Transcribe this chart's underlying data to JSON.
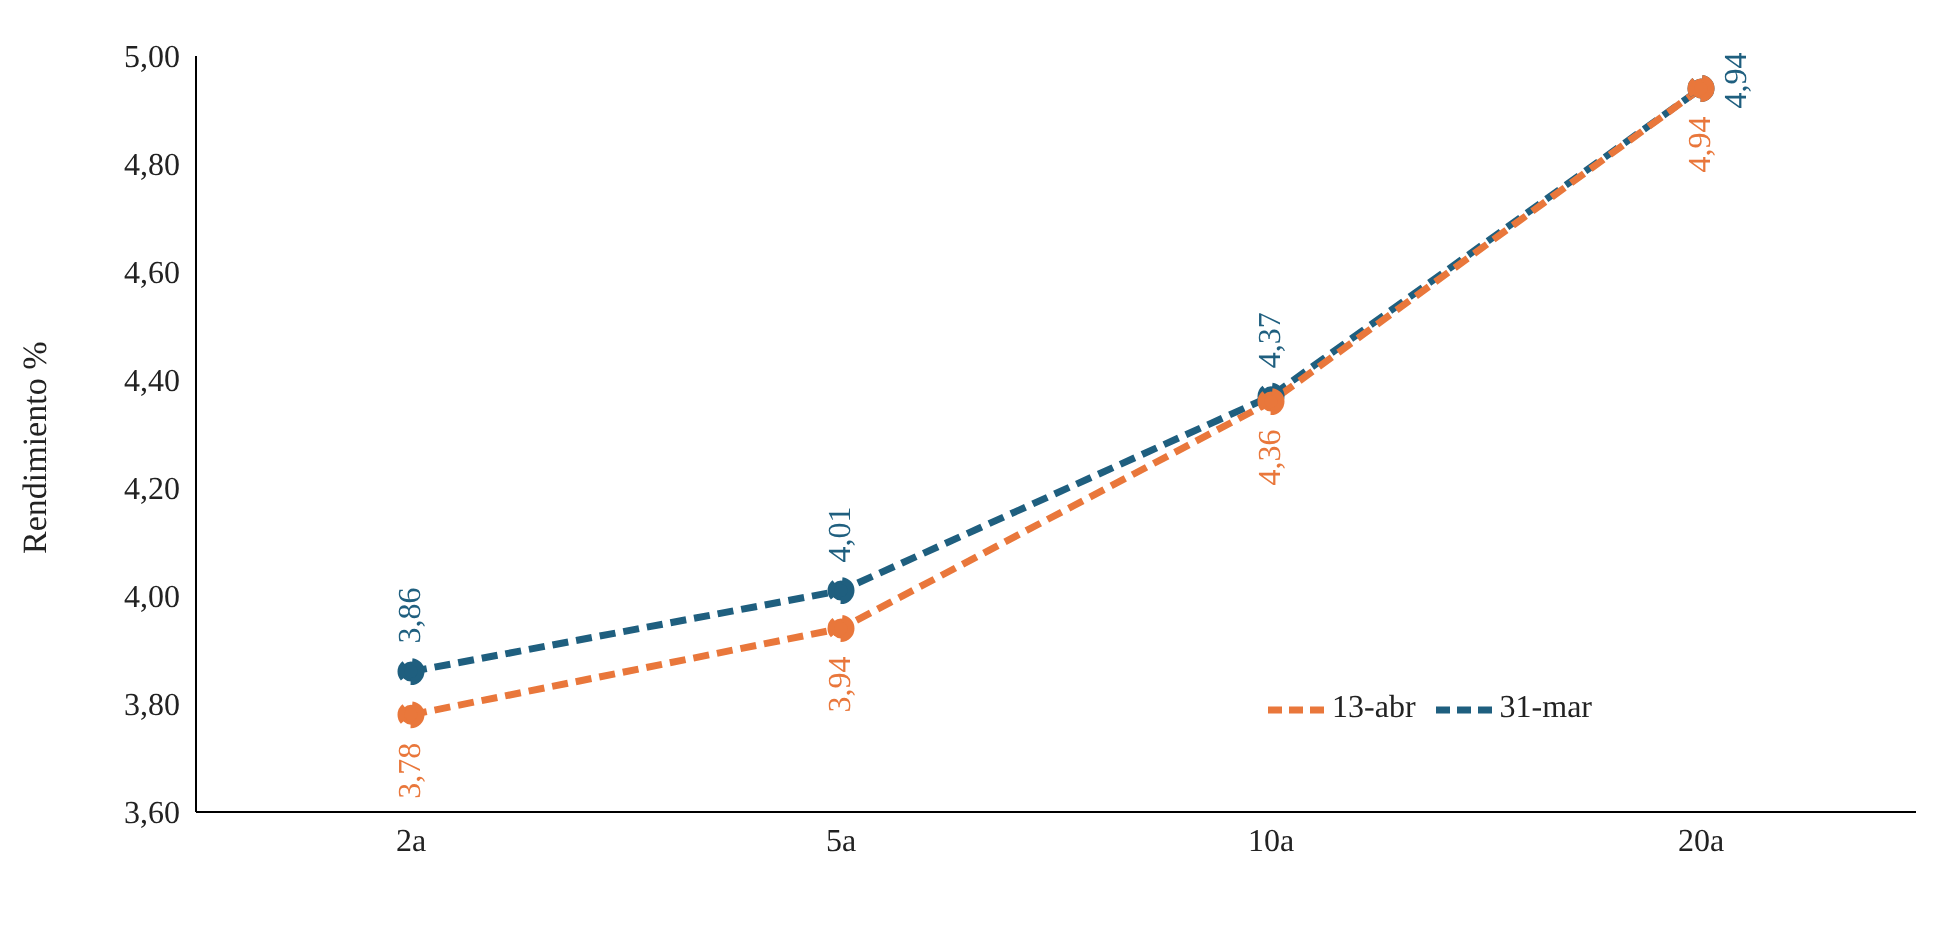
{
  "chart_data": {
    "type": "line",
    "ylabel": "Rendimiento %",
    "categories": [
      "2a",
      "5a",
      "10a",
      "20a"
    ],
    "series": [
      {
        "name": "31-mar",
        "color": "#1f5f7f",
        "values": [
          3.86,
          4.01,
          4.37,
          4.94
        ],
        "value_labels": [
          "3,86",
          "4,01",
          "4,37",
          "4,94"
        ]
      },
      {
        "name": "13-abr",
        "color": "#e9773b",
        "values": [
          3.78,
          3.94,
          4.36,
          4.94
        ],
        "value_labels": [
          "3,78",
          "3,94",
          "4,36",
          "4,94"
        ]
      }
    ],
    "ylim": [
      3.6,
      5.0
    ],
    "yticks": [
      {
        "value": 3.6,
        "label": "3,60"
      },
      {
        "value": 3.8,
        "label": "3,80"
      },
      {
        "value": 4.0,
        "label": "4,00"
      },
      {
        "value": 4.2,
        "label": "4,20"
      },
      {
        "value": 4.4,
        "label": "4,40"
      },
      {
        "value": 4.6,
        "label": "4,60"
      },
      {
        "value": 4.8,
        "label": "4,80"
      },
      {
        "value": 5.0,
        "label": "5,00"
      }
    ],
    "grid": false,
    "legend": "bottom right",
    "marker": "circle",
    "line_style": "dashed"
  }
}
